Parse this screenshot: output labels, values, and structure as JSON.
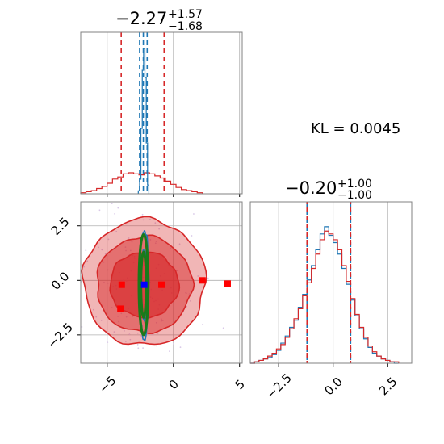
{
  "chart_data": {
    "type": "corner",
    "annotation": "KL = 0.0045",
    "x_param": {
      "title_value": "−2.27",
      "title_upper": "+1.57",
      "title_lower": "−1.68",
      "range": [
        -7,
        5.2
      ],
      "ticks": [
        -5,
        0,
        5
      ],
      "tick_labels": [
        "−5",
        "0",
        "5"
      ],
      "quantiles": {
        "red": [
          -3.94,
          -0.7
        ],
        "blue": [
          -2.55,
          -1.98
        ]
      },
      "median": -2.27
    },
    "y_param": {
      "title_value": "−0.20",
      "title_upper": "+1.00",
      "title_lower": "−1.00",
      "range": [
        -3.8,
        3.6
      ],
      "ticks": [
        -2.5,
        0.0,
        2.5
      ],
      "tick_labels": [
        "−2.5",
        "0.0",
        "2.5"
      ],
      "quantiles": [
        -1.2,
        0.8
      ],
      "median": -0.2
    },
    "colors": {
      "red": "#d62728",
      "blue": "#1f77b4",
      "green": "#1a7a1a",
      "marker_blue": "#0000ff",
      "grid": "#b0b0b0"
    },
    "hist_x_red": [
      [
        -6.8,
        0.01
      ],
      [
        -6.4,
        0.02
      ],
      [
        -6.0,
        0.03
      ],
      [
        -5.6,
        0.05
      ],
      [
        -5.2,
        0.07
      ],
      [
        -4.8,
        0.1
      ],
      [
        -4.4,
        0.14
      ],
      [
        -4.0,
        0.16
      ],
      [
        -3.6,
        0.19
      ],
      [
        -3.2,
        0.2
      ],
      [
        -2.8,
        0.19
      ],
      [
        -2.4,
        0.18
      ],
      [
        -2.0,
        0.2
      ],
      [
        -1.6,
        0.19
      ],
      [
        -1.2,
        0.17
      ],
      [
        -0.8,
        0.15
      ],
      [
        -0.4,
        0.12
      ],
      [
        0.0,
        0.09
      ],
      [
        0.4,
        0.06
      ],
      [
        0.8,
        0.04
      ],
      [
        1.2,
        0.03
      ],
      [
        1.6,
        0.02
      ],
      [
        2.0,
        0.01
      ]
    ],
    "hist_x_blue": [
      [
        -2.6,
        0.02
      ],
      [
        -2.5,
        0.1
      ],
      [
        -2.4,
        0.45
      ],
      [
        -2.3,
        0.85
      ],
      [
        -2.2,
        1.0
      ],
      [
        -2.1,
        0.8
      ],
      [
        -2.0,
        0.35
      ],
      [
        -1.9,
        0.06
      ]
    ],
    "hist_y_red": [
      [
        -3.7,
        0.0
      ],
      [
        -3.5,
        0.01
      ],
      [
        -3.3,
        0.02
      ],
      [
        -3.1,
        0.03
      ],
      [
        -2.9,
        0.05
      ],
      [
        -2.7,
        0.07
      ],
      [
        -2.5,
        0.1
      ],
      [
        -2.3,
        0.13
      ],
      [
        -2.1,
        0.18
      ],
      [
        -1.9,
        0.24
      ],
      [
        -1.7,
        0.31
      ],
      [
        -1.5,
        0.38
      ],
      [
        -1.3,
        0.47
      ],
      [
        -1.1,
        0.56
      ],
      [
        -0.9,
        0.66
      ],
      [
        -0.7,
        0.76
      ],
      [
        -0.5,
        0.86
      ],
      [
        -0.3,
        0.92
      ],
      [
        -0.1,
        0.9
      ],
      [
        0.1,
        0.86
      ],
      [
        0.3,
        0.79
      ],
      [
        0.5,
        0.68
      ],
      [
        0.7,
        0.57
      ],
      [
        0.9,
        0.45
      ],
      [
        1.1,
        0.34
      ],
      [
        1.3,
        0.25
      ],
      [
        1.5,
        0.18
      ],
      [
        1.7,
        0.12
      ],
      [
        1.9,
        0.08
      ],
      [
        2.1,
        0.05
      ],
      [
        2.3,
        0.03
      ],
      [
        2.5,
        0.02
      ],
      [
        2.7,
        0.01
      ],
      [
        2.9,
        0.01
      ]
    ],
    "hist_y_blue": [
      [
        -3.7,
        0.0
      ],
      [
        -3.5,
        0.01
      ],
      [
        -3.3,
        0.02
      ],
      [
        -3.1,
        0.03
      ],
      [
        -2.9,
        0.04
      ],
      [
        -2.7,
        0.06
      ],
      [
        -2.5,
        0.09
      ],
      [
        -2.3,
        0.14
      ],
      [
        -2.1,
        0.19
      ],
      [
        -1.9,
        0.25
      ],
      [
        -1.7,
        0.3
      ],
      [
        -1.5,
        0.39
      ],
      [
        -1.3,
        0.48
      ],
      [
        -1.1,
        0.58
      ],
      [
        -0.9,
        0.68
      ],
      [
        -0.7,
        0.79
      ],
      [
        -0.5,
        0.9
      ],
      [
        -0.3,
        0.95
      ],
      [
        -0.1,
        0.89
      ],
      [
        0.1,
        0.84
      ],
      [
        0.3,
        0.76
      ],
      [
        0.5,
        0.66
      ],
      [
        0.7,
        0.55
      ],
      [
        0.9,
        0.44
      ],
      [
        1.1,
        0.33
      ],
      [
        1.3,
        0.24
      ],
      [
        1.5,
        0.17
      ],
      [
        1.7,
        0.11
      ],
      [
        1.9,
        0.07
      ],
      [
        2.1,
        0.05
      ],
      [
        2.3,
        0.03
      ],
      [
        2.5,
        0.02
      ],
      [
        2.7,
        0.01
      ],
      [
        2.9,
        0.0
      ]
    ],
    "red_contours": [
      {
        "cx": -2.2,
        "cy": -0.1,
        "rx": 4.6,
        "ry": 2.9,
        "opacity": 0.45
      },
      {
        "cx": -2.2,
        "cy": -0.2,
        "rx": 3.6,
        "ry": 2.2,
        "opacity": 0.65
      },
      {
        "cx": -2.2,
        "cy": -0.2,
        "rx": 2.6,
        "ry": 1.5,
        "opacity": 0.85
      }
    ],
    "blue_contours": [
      {
        "cx": -2.2,
        "cy": -0.2,
        "rx": 0.35,
        "ry": 2.5
      },
      {
        "cx": -2.2,
        "cy": -0.2,
        "rx": 0.22,
        "ry": 1.6
      }
    ],
    "green_ellipses": [
      {
        "cx": -2.25,
        "cy": -0.2,
        "rx": 0.35,
        "ry": 2.3
      },
      {
        "cx": -2.25,
        "cy": -0.2,
        "rx": 0.2,
        "ry": 1.5
      }
    ],
    "red_squares": [
      [
        -3.9,
        -0.2
      ],
      [
        -0.9,
        -0.2
      ],
      [
        2.2,
        0.0
      ],
      [
        4.1,
        -0.15
      ],
      [
        -4.0,
        -1.3
      ]
    ],
    "blue_marker": [
      -2.2,
      -0.2
    ]
  }
}
